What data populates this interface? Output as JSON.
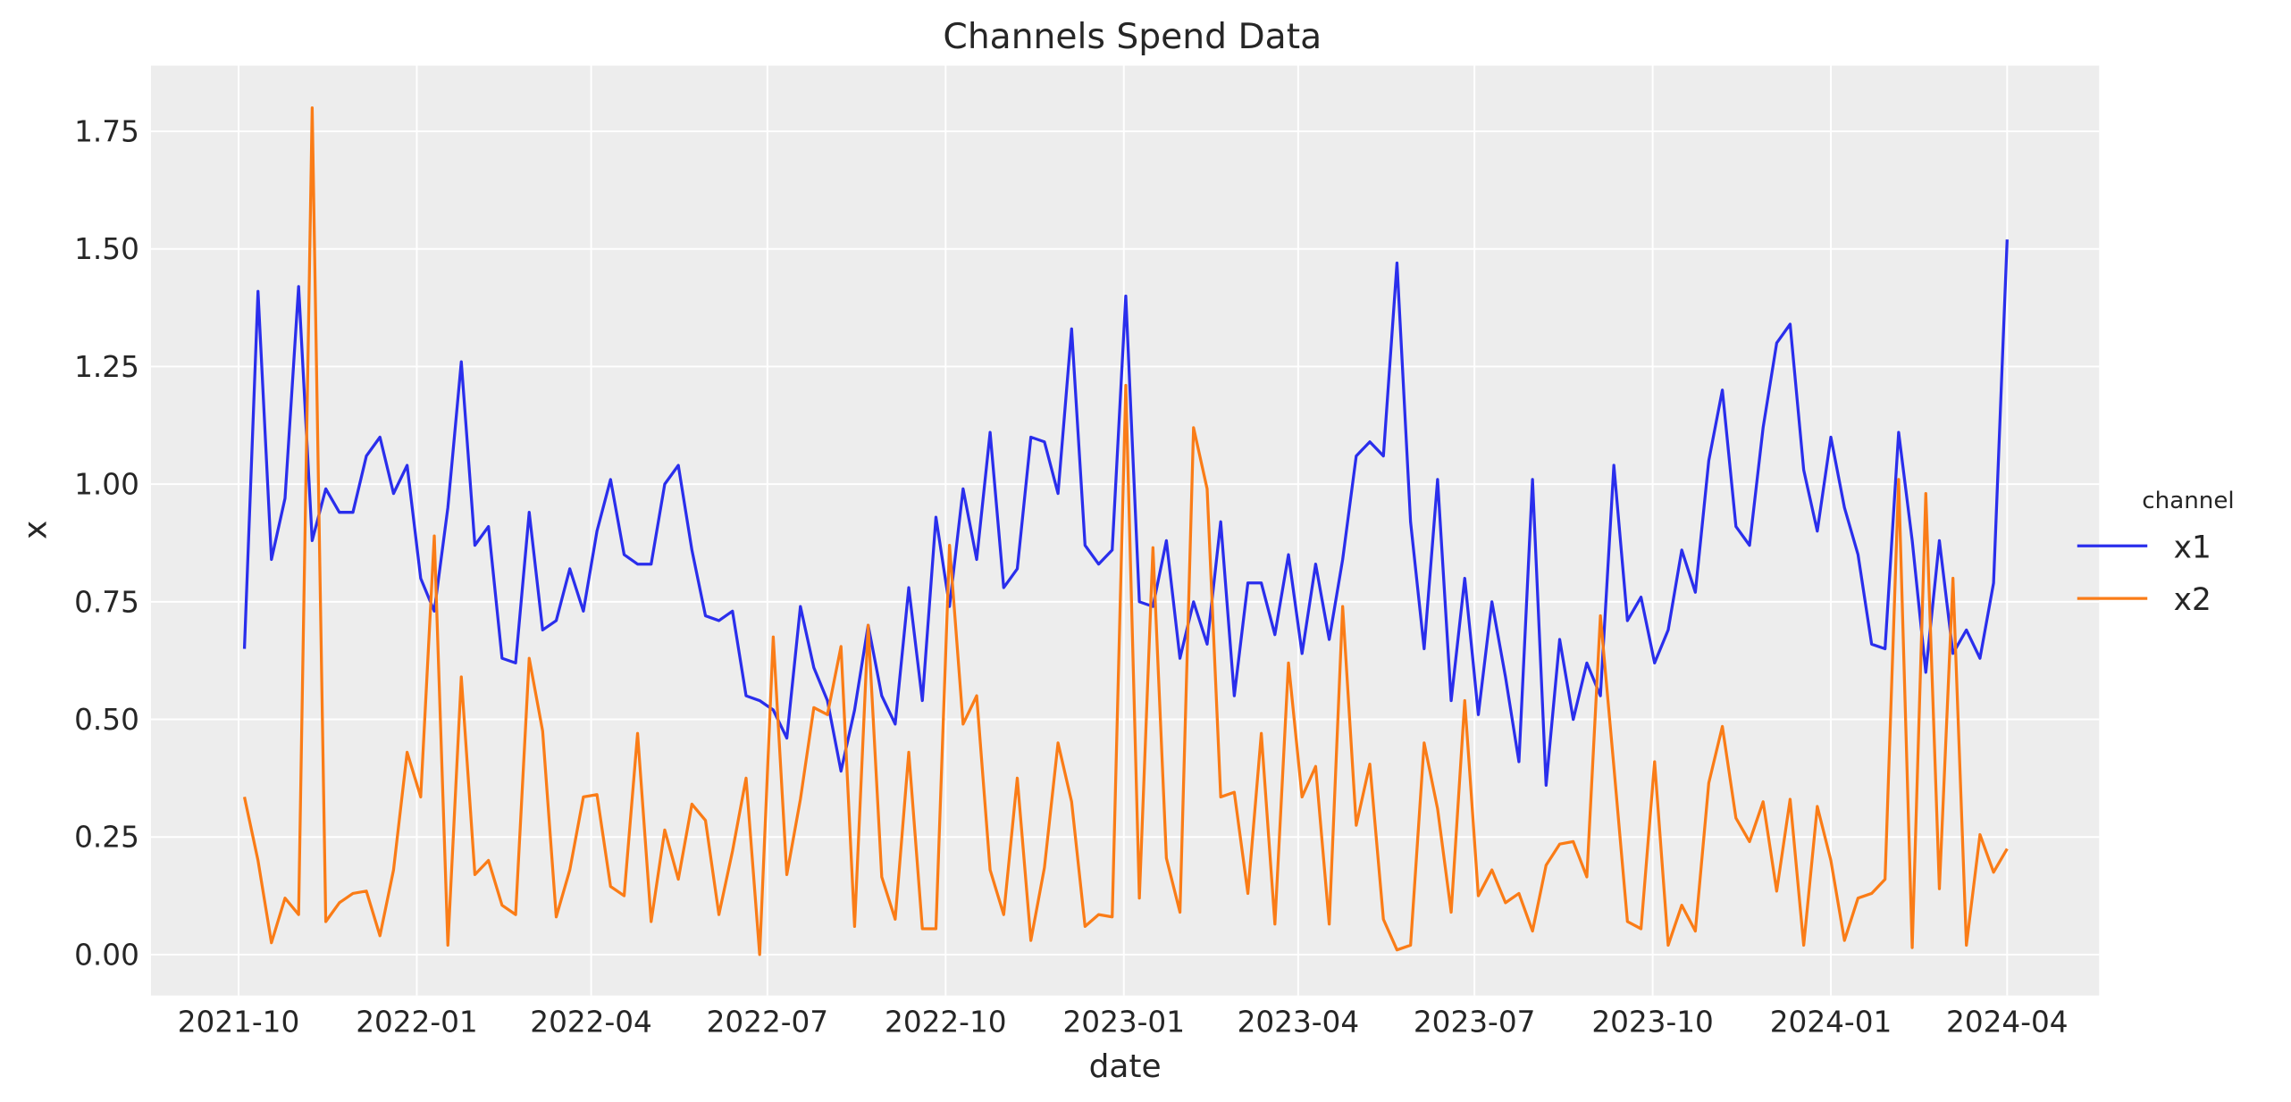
{
  "chart_data": {
    "type": "line",
    "title": "Channels Spend Data",
    "xlabel": "date",
    "ylabel": "x",
    "ylim": [
      -0.09,
      1.88
    ],
    "xlim": [
      "2021-08-17",
      "2024-04-30"
    ],
    "grid": true,
    "background": "#ededed",
    "legend": {
      "title": "channel",
      "placement": "right-outside"
    },
    "x_ticks": [
      "2021-10",
      "2022-01",
      "2022-04",
      "2022-07",
      "2022-10",
      "2023-01",
      "2023-04",
      "2023-07",
      "2023-10",
      "2024-01",
      "2024-04"
    ],
    "y_ticks": [
      "0.00",
      "0.25",
      "0.50",
      "0.75",
      "1.00",
      "1.25",
      "1.50",
      "1.75"
    ],
    "x": [
      "2021-10-04",
      "2021-10-11",
      "2021-10-18",
      "2021-10-25",
      "2021-11-01",
      "2021-11-08",
      "2021-11-15",
      "2021-11-22",
      "2021-11-29",
      "2021-12-06",
      "2021-12-13",
      "2021-12-20",
      "2021-12-27",
      "2022-01-03",
      "2022-01-10",
      "2022-01-17",
      "2022-01-24",
      "2022-01-31",
      "2022-02-07",
      "2022-02-14",
      "2022-02-21",
      "2022-02-28",
      "2022-03-07",
      "2022-03-14",
      "2022-03-21",
      "2022-03-28",
      "2022-04-04",
      "2022-04-11",
      "2022-04-18",
      "2022-04-25",
      "2022-05-02",
      "2022-05-09",
      "2022-05-16",
      "2022-05-23",
      "2022-05-30",
      "2022-06-06",
      "2022-06-13",
      "2022-06-20",
      "2022-06-27",
      "2022-07-04",
      "2022-07-11",
      "2022-07-18",
      "2022-07-25",
      "2022-08-01",
      "2022-08-08",
      "2022-08-15",
      "2022-08-22",
      "2022-08-29",
      "2022-09-05",
      "2022-09-12",
      "2022-09-19",
      "2022-09-26",
      "2022-10-03",
      "2022-10-10",
      "2022-10-17",
      "2022-10-24",
      "2022-10-31",
      "2022-11-07",
      "2022-11-14",
      "2022-11-21",
      "2022-11-28",
      "2022-12-05",
      "2022-12-12",
      "2022-12-19",
      "2022-12-26",
      "2023-01-02",
      "2023-01-09",
      "2023-01-16",
      "2023-01-23",
      "2023-01-30",
      "2023-02-06",
      "2023-02-13",
      "2023-02-20",
      "2023-02-27",
      "2023-03-06",
      "2023-03-13",
      "2023-03-20",
      "2023-03-27",
      "2023-04-03",
      "2023-04-10",
      "2023-04-17",
      "2023-04-24",
      "2023-05-01",
      "2023-05-08",
      "2023-05-15",
      "2023-05-22",
      "2023-05-29",
      "2023-06-05",
      "2023-06-12",
      "2023-06-19",
      "2023-06-26",
      "2023-07-03",
      "2023-07-10",
      "2023-07-17",
      "2023-07-24",
      "2023-07-31",
      "2023-08-07",
      "2023-08-14",
      "2023-08-21",
      "2023-08-28",
      "2023-09-04",
      "2023-09-11",
      "2023-09-18",
      "2023-09-25",
      "2023-10-02",
      "2023-10-09",
      "2023-10-16",
      "2023-10-23",
      "2023-10-30",
      "2023-11-06",
      "2023-11-13",
      "2023-11-20",
      "2023-11-27",
      "2023-12-04",
      "2023-12-11",
      "2023-12-18",
      "2023-12-25",
      "2024-01-01",
      "2024-01-08",
      "2024-01-15",
      "2024-01-22",
      "2024-01-29",
      "2024-02-05",
      "2024-02-12",
      "2024-02-19",
      "2024-02-26",
      "2024-03-04",
      "2024-03-11",
      "2024-03-18",
      "2024-03-25",
      "2024-04-01"
    ],
    "series": [
      {
        "name": "x1",
        "color": "#2a2eec",
        "values": [
          0.65,
          1.41,
          0.84,
          0.97,
          1.42,
          0.88,
          0.99,
          0.94,
          0.94,
          1.06,
          1.1,
          0.98,
          1.04,
          0.8,
          0.73,
          0.95,
          1.26,
          0.87,
          0.91,
          0.63,
          0.62,
          0.94,
          0.69,
          0.71,
          0.82,
          0.73,
          0.9,
          1.01,
          0.85,
          0.83,
          0.83,
          1.0,
          1.04,
          0.86,
          0.72,
          0.71,
          0.73,
          0.55,
          0.54,
          0.52,
          0.46,
          0.74,
          0.61,
          0.54,
          0.39,
          0.52,
          0.7,
          0.55,
          0.49,
          0.78,
          0.54,
          0.93,
          0.74,
          0.99,
          0.84,
          1.11,
          0.78,
          0.82,
          1.1,
          1.09,
          0.98,
          1.33,
          0.87,
          0.83,
          0.86,
          1.4,
          0.75,
          0.74,
          0.88,
          0.63,
          0.75,
          0.66,
          0.92,
          0.55,
          0.79,
          0.79,
          0.68,
          0.85,
          0.64,
          0.83,
          0.67,
          0.84,
          1.06,
          1.09,
          1.06,
          1.47,
          0.92,
          0.65,
          1.01,
          0.54,
          0.8,
          0.51,
          0.75,
          0.59,
          0.41,
          1.01,
          0.36,
          0.67,
          0.5,
          0.62,
          0.55,
          1.04,
          0.71,
          0.76,
          0.62,
          0.69,
          0.86,
          0.77,
          1.05,
          1.2,
          0.91,
          0.87,
          1.12,
          1.3,
          1.34,
          1.03,
          0.9,
          1.1,
          0.95,
          0.85,
          0.66,
          0.65,
          1.11,
          0.88,
          0.6,
          0.88,
          0.64,
          0.69,
          0.63,
          0.79,
          1.52
        ]
      },
      {
        "name": "x2",
        "color": "#fa7c17",
        "values": [
          0.335,
          0.2,
          0.025,
          0.12,
          0.085,
          1.8,
          0.07,
          0.11,
          0.13,
          0.135,
          0.04,
          0.18,
          0.43,
          0.335,
          0.89,
          0.02,
          0.59,
          0.17,
          0.2,
          0.105,
          0.085,
          0.63,
          0.475,
          0.08,
          0.18,
          0.335,
          0.34,
          0.145,
          0.125,
          0.47,
          0.07,
          0.265,
          0.16,
          0.32,
          0.285,
          0.085,
          0.22,
          0.375,
          0.0,
          0.675,
          0.17,
          0.33,
          0.525,
          0.51,
          0.655,
          0.06,
          0.7,
          0.165,
          0.075,
          0.43,
          0.055,
          0.055,
          0.87,
          0.49,
          0.55,
          0.18,
          0.085,
          0.375,
          0.03,
          0.185,
          0.45,
          0.325,
          0.06,
          0.085,
          0.08,
          1.21,
          0.12,
          0.865,
          0.205,
          0.09,
          1.12,
          0.99,
          0.335,
          0.345,
          0.13,
          0.47,
          0.065,
          0.62,
          0.335,
          0.4,
          0.065,
          0.74,
          0.275,
          0.405,
          0.075,
          0.01,
          0.02,
          0.45,
          0.31,
          0.09,
          0.54,
          0.125,
          0.18,
          0.11,
          0.13,
          0.05,
          0.19,
          0.235,
          0.24,
          0.165,
          0.72,
          0.4,
          0.07,
          0.055,
          0.41,
          0.02,
          0.105,
          0.05,
          0.365,
          0.485,
          0.29,
          0.24,
          0.325,
          0.135,
          0.33,
          0.02,
          0.315,
          0.2,
          0.03,
          0.12,
          0.13,
          0.16,
          1.01,
          0.015,
          0.98,
          0.14,
          0.8,
          0.02,
          0.255,
          0.175,
          0.225
        ]
      }
    ]
  }
}
